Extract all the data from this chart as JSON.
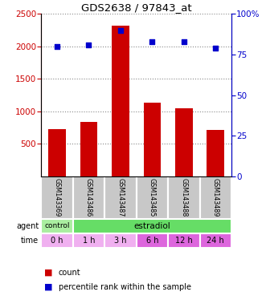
{
  "title": "GDS2638 / 97843_at",
  "samples": [
    "GSM143369",
    "GSM143486",
    "GSM143487",
    "GSM143485",
    "GSM143488",
    "GSM143489"
  ],
  "counts": [
    730,
    840,
    2320,
    1130,
    1050,
    710
  ],
  "percentiles": [
    80,
    81,
    90,
    83,
    83,
    79
  ],
  "ylim_left": [
    0,
    2500
  ],
  "ylim_right": [
    0,
    100
  ],
  "yticks_left": [
    500,
    1000,
    1500,
    2000,
    2500
  ],
  "yticks_right": [
    0,
    25,
    50,
    75,
    100
  ],
  "bar_color": "#cc0000",
  "dot_color": "#0000cc",
  "time_labels": [
    "0 h",
    "1 h",
    "3 h",
    "6 h",
    "12 h",
    "24 h"
  ],
  "time_colors": [
    "#f0b0f0",
    "#f0b0f0",
    "#f0b0f0",
    "#dd66dd",
    "#dd66dd",
    "#dd66dd"
  ],
  "agent_ctrl_color": "#aaeea0",
  "agent_estr_color": "#66dd66",
  "sample_box_color": "#c8c8c8",
  "grid_color": "#888888"
}
